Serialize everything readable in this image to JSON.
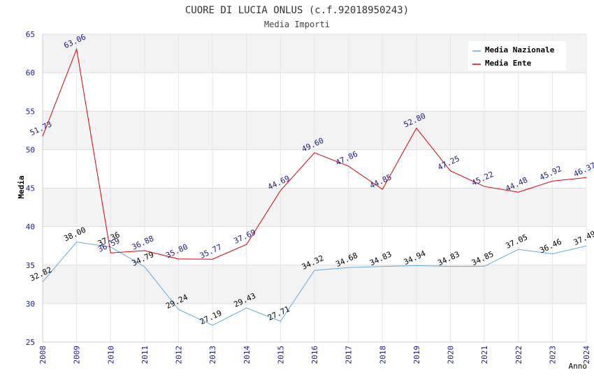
{
  "chart_data": {
    "type": "line",
    "title": "CUORE DI LUCIA ONLUS (c.f.92018950243)",
    "subtitle": "Media Importi",
    "xlabel": "Anno",
    "ylabel": "Media",
    "ylim": [
      25,
      65
    ],
    "yticks": [
      "25",
      "30",
      "35",
      "40",
      "45",
      "50",
      "55",
      "60",
      "65"
    ],
    "categories": [
      "2008",
      "2009",
      "2010",
      "2011",
      "2012",
      "2013",
      "2014",
      "2015",
      "2016",
      "2017",
      "2018",
      "2019",
      "2020",
      "2021",
      "2022",
      "2023",
      "2024"
    ],
    "legend_position": "top-right",
    "series": [
      {
        "name": "Media Nazionale",
        "color": "#66aadd",
        "label_color": "#000000",
        "values": [
          32.82,
          38.0,
          37.36,
          34.79,
          29.24,
          27.19,
          29.43,
          27.71,
          34.32,
          34.68,
          34.83,
          34.94,
          34.83,
          34.85,
          37.05,
          36.46,
          37.49
        ],
        "labels": [
          "32.82",
          "38.00",
          "37.36",
          "34.79",
          "29.24",
          "27.19",
          "29.43",
          "27.71",
          "34.32",
          "34.68",
          "34.83",
          "34.94",
          "34.83",
          "34.85",
          "37.05",
          "36.46",
          "37.49"
        ]
      },
      {
        "name": "Media Ente",
        "color": "#dd0000",
        "label_color": "#1a1a88",
        "values": [
          51.73,
          63.06,
          36.59,
          36.88,
          35.8,
          35.77,
          37.69,
          44.69,
          49.6,
          47.86,
          44.85,
          52.8,
          47.25,
          45.22,
          44.48,
          45.92,
          46.37
        ],
        "labels": [
          "51.73",
          "63.06",
          "36.59",
          "36.88",
          "35.80",
          "35.77",
          "37.69",
          "44.69",
          "49.60",
          "47.86",
          "44.85",
          "52.80",
          "47.25",
          "45.22",
          "44.48",
          "45.92",
          "46.37"
        ]
      }
    ]
  }
}
